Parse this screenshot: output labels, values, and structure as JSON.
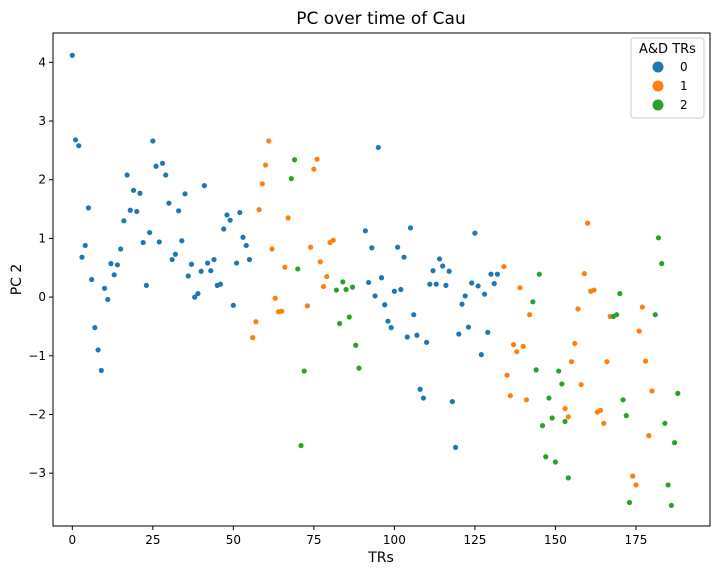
{
  "chart_data": {
    "type": "scatter",
    "title": "PC over time of Cau",
    "xlabel": "TRs",
    "ylabel": "PC 2",
    "xlim": [
      -6,
      198
    ],
    "ylim": [
      -3.9,
      4.5
    ],
    "xticks": [
      0,
      25,
      50,
      75,
      100,
      125,
      150,
      175
    ],
    "yticks": [
      -3,
      -2,
      -1,
      0,
      1,
      2,
      3,
      4
    ],
    "grid": false,
    "legend": {
      "title": "A&D TRs",
      "placement": "top-right"
    },
    "series": [
      {
        "name": "0",
        "color": "#1f77b4",
        "points": [
          [
            0,
            4.12
          ],
          [
            1,
            2.68
          ],
          [
            2,
            2.58
          ],
          [
            3,
            0.68
          ],
          [
            4,
            0.88
          ],
          [
            5,
            1.52
          ],
          [
            6,
            0.3
          ],
          [
            7,
            -0.52
          ],
          [
            8,
            -0.9
          ],
          [
            9,
            -1.25
          ],
          [
            10,
            0.15
          ],
          [
            11,
            -0.04
          ],
          [
            12,
            0.57
          ],
          [
            13,
            0.38
          ],
          [
            14,
            0.55
          ],
          [
            15,
            0.82
          ],
          [
            16,
            1.3
          ],
          [
            17,
            2.08
          ],
          [
            18,
            1.48
          ],
          [
            19,
            1.82
          ],
          [
            20,
            1.46
          ],
          [
            21,
            1.77
          ],
          [
            22,
            0.93
          ],
          [
            23,
            0.2
          ],
          [
            24,
            1.1
          ],
          [
            25,
            2.66
          ],
          [
            26,
            2.23
          ],
          [
            27,
            0.94
          ],
          [
            28,
            2.28
          ],
          [
            29,
            2.08
          ],
          [
            30,
            1.6
          ],
          [
            31,
            0.64
          ],
          [
            32,
            0.73
          ],
          [
            33,
            1.47
          ],
          [
            34,
            0.96
          ],
          [
            35,
            1.76
          ],
          [
            36,
            0.36
          ],
          [
            37,
            0.56
          ],
          [
            38,
            0.0
          ],
          [
            39,
            0.06
          ],
          [
            40,
            0.44
          ],
          [
            41,
            1.9
          ],
          [
            42,
            0.58
          ],
          [
            43,
            0.45
          ],
          [
            44,
            0.64
          ],
          [
            45,
            0.2
          ],
          [
            46,
            0.22
          ],
          [
            47,
            1.16
          ],
          [
            48,
            1.4
          ],
          [
            49,
            1.31
          ],
          [
            50,
            -0.14
          ],
          [
            51,
            0.58
          ],
          [
            52,
            1.44
          ],
          [
            53,
            1.02
          ],
          [
            54,
            0.88
          ],
          [
            55,
            0.64
          ],
          [
            91,
            1.13
          ],
          [
            92,
            0.25
          ],
          [
            93,
            0.84
          ],
          [
            94,
            0.02
          ],
          [
            95,
            2.55
          ],
          [
            96,
            0.33
          ],
          [
            97,
            -0.13
          ],
          [
            98,
            -0.41
          ],
          [
            99,
            -0.52
          ],
          [
            100,
            0.1
          ],
          [
            101,
            0.85
          ],
          [
            102,
            0.13
          ],
          [
            103,
            0.68
          ],
          [
            104,
            -0.68
          ],
          [
            105,
            1.18
          ],
          [
            106,
            -0.3
          ],
          [
            107,
            -0.65
          ],
          [
            108,
            -1.57
          ],
          [
            109,
            -1.72
          ],
          [
            110,
            -0.77
          ],
          [
            111,
            0.22
          ],
          [
            112,
            0.45
          ],
          [
            113,
            0.22
          ],
          [
            114,
            0.65
          ],
          [
            115,
            0.53
          ],
          [
            116,
            0.2
          ],
          [
            117,
            0.44
          ],
          [
            118,
            -1.78
          ],
          [
            119,
            -2.56
          ],
          [
            120,
            -0.63
          ],
          [
            121,
            -0.12
          ],
          [
            122,
            0.02
          ],
          [
            123,
            -0.51
          ],
          [
            124,
            0.24
          ],
          [
            125,
            1.09
          ],
          [
            126,
            0.19
          ],
          [
            127,
            -0.98
          ],
          [
            128,
            0.05
          ],
          [
            129,
            -0.6
          ],
          [
            130,
            0.39
          ],
          [
            131,
            0.23
          ],
          [
            132,
            0.39
          ]
        ]
      },
      {
        "name": "1",
        "color": "#ff7f0e",
        "points": [
          [
            56,
            -0.69
          ],
          [
            57,
            -0.42
          ],
          [
            58,
            1.49
          ],
          [
            59,
            1.93
          ],
          [
            60,
            2.25
          ],
          [
            61,
            2.66
          ],
          [
            62,
            0.82
          ],
          [
            63,
            -0.02
          ],
          [
            64,
            -0.25
          ],
          [
            65,
            -0.24
          ],
          [
            66,
            0.51
          ],
          [
            67,
            1.35
          ],
          [
            73,
            -0.15
          ],
          [
            74,
            0.85
          ],
          [
            75,
            2.18
          ],
          [
            76,
            2.35
          ],
          [
            77,
            0.6
          ],
          [
            78,
            0.18
          ],
          [
            79,
            0.35
          ],
          [
            80,
            0.93
          ],
          [
            81,
            0.97
          ],
          [
            134,
            0.52
          ],
          [
            135,
            -1.33
          ],
          [
            136,
            -1.68
          ],
          [
            137,
            -0.81
          ],
          [
            138,
            -0.93
          ],
          [
            139,
            0.16
          ],
          [
            140,
            -0.84
          ],
          [
            141,
            -1.75
          ],
          [
            142,
            -0.3
          ],
          [
            153,
            -1.9
          ],
          [
            154,
            -2.04
          ],
          [
            155,
            -1.1
          ],
          [
            156,
            -0.79
          ],
          [
            157,
            -0.2
          ],
          [
            158,
            -1.49
          ],
          [
            159,
            0.4
          ],
          [
            160,
            1.26
          ],
          [
            161,
            0.1
          ],
          [
            162,
            0.12
          ],
          [
            163,
            -1.96
          ],
          [
            164,
            -1.93
          ],
          [
            165,
            -2.15
          ],
          [
            166,
            -1.1
          ],
          [
            167,
            -0.33
          ],
          [
            174,
            -3.05
          ],
          [
            175,
            -3.2
          ],
          [
            176,
            -0.58
          ],
          [
            177,
            -0.17
          ],
          [
            178,
            -1.09
          ],
          [
            179,
            -2.36
          ],
          [
            180,
            -1.6
          ]
        ]
      },
      {
        "name": "2",
        "color": "#2ca02c",
        "points": [
          [
            68,
            2.02
          ],
          [
            69,
            2.34
          ],
          [
            70,
            0.48
          ],
          [
            71,
            -2.53
          ],
          [
            72,
            -1.26
          ],
          [
            82,
            0.12
          ],
          [
            83,
            -0.45
          ],
          [
            84,
            0.26
          ],
          [
            85,
            0.13
          ],
          [
            86,
            -0.34
          ],
          [
            87,
            0.17
          ],
          [
            88,
            -0.82
          ],
          [
            89,
            -1.21
          ],
          [
            143,
            -0.08
          ],
          [
            144,
            -1.24
          ],
          [
            145,
            0.39
          ],
          [
            146,
            -2.19
          ],
          [
            147,
            -2.72
          ],
          [
            148,
            -1.72
          ],
          [
            149,
            -2.06
          ],
          [
            150,
            -2.81
          ],
          [
            151,
            -1.26
          ],
          [
            152,
            -1.48
          ],
          [
            153,
            -2.12
          ],
          [
            154,
            -3.08
          ],
          [
            168,
            -0.33
          ],
          [
            169,
            -0.3
          ],
          [
            170,
            0.06
          ],
          [
            171,
            -1.75
          ],
          [
            172,
            -2.02
          ],
          [
            173,
            -3.5
          ],
          [
            181,
            -0.3
          ],
          [
            182,
            1.01
          ],
          [
            183,
            0.57
          ],
          [
            184,
            -2.15
          ],
          [
            185,
            -3.2
          ],
          [
            186,
            -3.55
          ],
          [
            187,
            -2.48
          ],
          [
            188,
            -1.64
          ]
        ]
      }
    ]
  }
}
